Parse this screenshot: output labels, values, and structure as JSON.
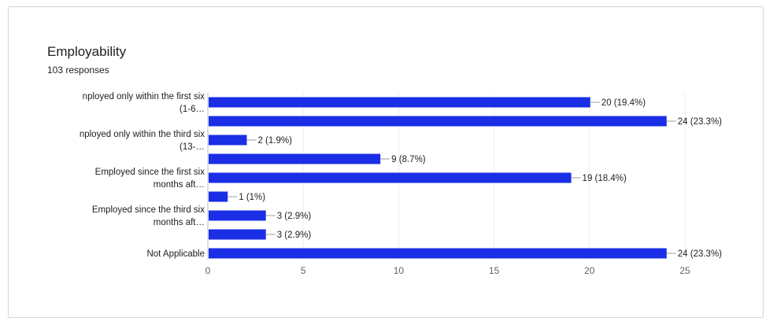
{
  "chart_data": {
    "type": "bar",
    "orientation": "horizontal",
    "title": "Employability",
    "subtitle": "103 responses",
    "bars": [
      {
        "label_lines": [
          "nployed only within the first six",
          "(1-6…"
        ],
        "value": 20,
        "value_label": "20 (19.4%)"
      },
      {
        "label_lines": [],
        "value": 24,
        "value_label": "24 (23.3%)"
      },
      {
        "label_lines": [
          "nployed only within the third six",
          "(13-…"
        ],
        "value": 2,
        "value_label": "2 (1.9%)"
      },
      {
        "label_lines": [],
        "value": 9,
        "value_label": "9 (8.7%)"
      },
      {
        "label_lines": [
          "Employed since the first six",
          "months aft…"
        ],
        "value": 19,
        "value_label": "19 (18.4%)"
      },
      {
        "label_lines": [],
        "value": 1,
        "value_label": "1 (1%)"
      },
      {
        "label_lines": [
          "Employed since the third six",
          "months aft…"
        ],
        "value": 3,
        "value_label": "3 (2.9%)"
      },
      {
        "label_lines": [],
        "value": 3,
        "value_label": "3 (2.9%)"
      },
      {
        "label_lines": [
          "Not Applicable"
        ],
        "value": 24,
        "value_label": "24 (23.3%)"
      }
    ],
    "xticks": [
      0,
      5,
      10,
      15,
      20,
      25
    ],
    "xlim": [
      0,
      25
    ],
    "grid": true,
    "bar_color": "#1a2ee6"
  }
}
